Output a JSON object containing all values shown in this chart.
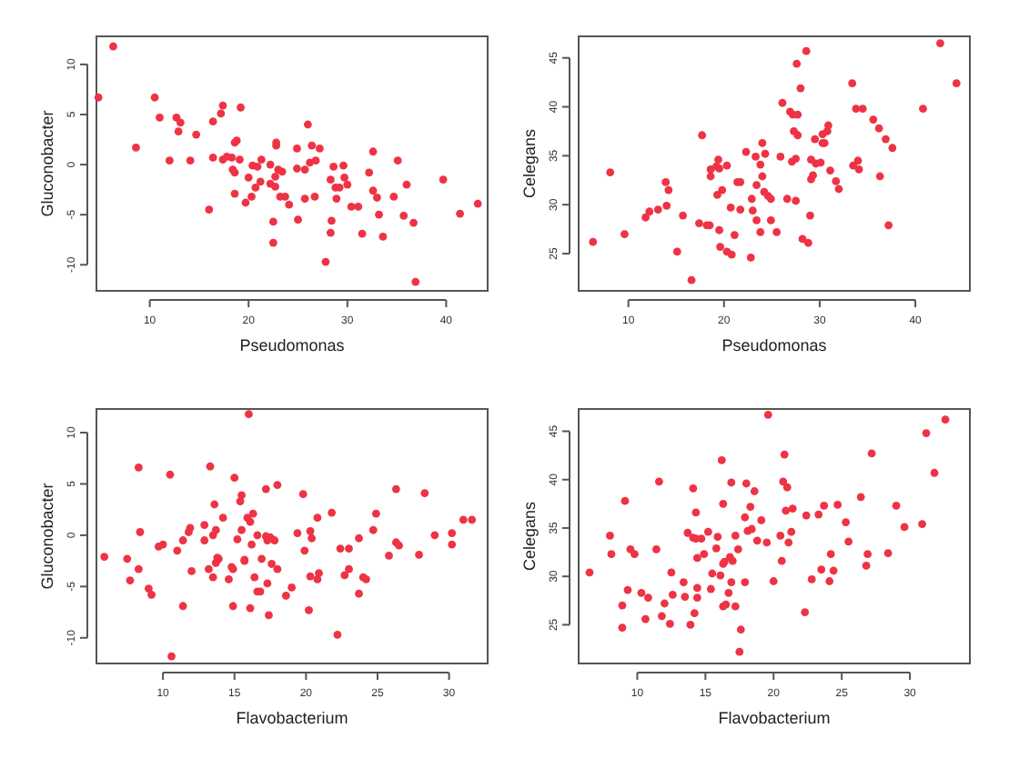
{
  "chart_data": [
    {
      "type": "scatter",
      "xlabel": "Pseudomonas",
      "ylabel": "Gluconobacter",
      "xlim": [
        4.6,
        44.2
      ],
      "ylim": [
        -12.6,
        12.8
      ],
      "xticks": [
        10,
        20,
        30,
        40
      ],
      "yticks": [
        -10,
        -5,
        0,
        5,
        10
      ],
      "marker": "circle",
      "series": [
        {
          "color": "#ee3344",
          "x": [
            6.3,
            4.8,
            8.6,
            10.5,
            11,
            12,
            12.7,
            13.1,
            12.9,
            14.1,
            14.7,
            16,
            16.4,
            16.4,
            17.2,
            17.4,
            17.4,
            17.8,
            18.3,
            18.6,
            18.8,
            19.2,
            18.4,
            18.6,
            18.6,
            19.1,
            19.7,
            20,
            20.4,
            20.7,
            20.3,
            20.9,
            21.2,
            21.3,
            22.2,
            22.2,
            22.5,
            22.5,
            22.7,
            22.8,
            22.8,
            22.7,
            23.2,
            23,
            23.4,
            23.7,
            24.1,
            24.9,
            24.9,
            25,
            25.7,
            26,
            25.7,
            26.2,
            26.4,
            26.8,
            26.7,
            27.2,
            27.8,
            28.3,
            28.4,
            28.3,
            28.6,
            28.8,
            28.9,
            29.2,
            29.6,
            29.7,
            30,
            30.4,
            31.1,
            31.5,
            32.2,
            32.6,
            32.6,
            33,
            33.2,
            33.6,
            34.7,
            35.1,
            35.7,
            36,
            36.7,
            36.9,
            39.7,
            41.4,
            43.2
          ],
          "values": [
            11.8,
            6.7,
            1.7,
            6.7,
            4.7,
            0.4,
            4.7,
            4.2,
            3.3,
            0.4,
            3,
            -4.5,
            4.3,
            0.7,
            5.1,
            5.9,
            0.5,
            0.8,
            0.7,
            2.2,
            2.4,
            5.7,
            -0.5,
            -0.8,
            -2.9,
            0.5,
            -3.8,
            -1.3,
            -0.1,
            -2.3,
            -3.2,
            -0.2,
            -1.7,
            0.5,
            0,
            -1.9,
            -5.7,
            -7.8,
            -2.2,
            1.9,
            2.2,
            -1.2,
            -3.2,
            -0.5,
            -0.7,
            -3.2,
            -4,
            1.6,
            -0.4,
            -5.5,
            -3.4,
            4,
            -0.5,
            0.2,
            1.9,
            0.4,
            -3.2,
            1.6,
            -9.7,
            -1.5,
            -5.6,
            -6.8,
            -0.2,
            -2.3,
            -3.4,
            -2.3,
            -0.1,
            -1.3,
            -2,
            -4.2,
            -4.2,
            -6.9,
            -0.8,
            1.3,
            -2.6,
            -3.3,
            -5,
            -7.2,
            -3.2,
            0.4,
            -5.1,
            -2,
            -5.8,
            -11.7,
            -1.5,
            -4.9,
            -3.9
          ]
        }
      ]
    },
    {
      "type": "scatter",
      "xlabel": "Pseudomonas",
      "ylabel": "Celegans",
      "xlim": [
        4.8,
        45.7
      ],
      "ylim": [
        21.2,
        47.2
      ],
      "xticks": [
        10,
        20,
        30,
        40
      ],
      "yticks": [
        25,
        30,
        35,
        40,
        45
      ],
      "marker": "circle",
      "series": [
        {
          "color": "#ee3344",
          "x": [
            6.3,
            8.1,
            9.6,
            11.8,
            12.2,
            13.1,
            13.9,
            14.2,
            14,
            15.1,
            15.7,
            16.6,
            17.4,
            17.7,
            18.2,
            18.5,
            18.6,
            18.6,
            19.2,
            19.4,
            19.5,
            19.3,
            19.5,
            19.6,
            19.8,
            20.3,
            20.3,
            20.7,
            20.8,
            21.1,
            21.4,
            21.7,
            21.7,
            22.3,
            22.8,
            22.9,
            23,
            23.3,
            23.4,
            23.4,
            23.8,
            23.8,
            24,
            24,
            24.3,
            24.2,
            24.6,
            24.9,
            24.9,
            25.5,
            25.9,
            26.1,
            26.6,
            26.9,
            27.1,
            27.2,
            27.3,
            27.5,
            27.5,
            27.6,
            27.7,
            27.7,
            28,
            28.2,
            28.6,
            28.8,
            29,
            29.1,
            29.1,
            29.3,
            29.5,
            29.6,
            30.1,
            30.3,
            30.3,
            30.5,
            30.8,
            30.9,
            31.1,
            31.7,
            32,
            33.4,
            33.5,
            33.8,
            34,
            34.1,
            34.5,
            35.6,
            36.2,
            36.3,
            36.9,
            37.2,
            37.6,
            40.8,
            42.6,
            44.3
          ],
          "values": [
            26.2,
            33.3,
            27,
            28.7,
            29.3,
            29.5,
            32.3,
            31.5,
            29.9,
            25.2,
            28.9,
            22.3,
            28.1,
            37.1,
            27.9,
            27.9,
            33.6,
            32.9,
            33.9,
            34.6,
            33.7,
            31,
            27.4,
            25.7,
            31.5,
            34,
            25.2,
            29.7,
            24.9,
            26.9,
            32.3,
            32.3,
            29.5,
            35.4,
            24.6,
            30.6,
            29.4,
            34.9,
            32,
            28.4,
            27.2,
            34.1,
            36.3,
            32.9,
            35.2,
            31.3,
            30.9,
            30.6,
            28.4,
            27.2,
            34.9,
            40.4,
            30.6,
            39.5,
            34.4,
            39.2,
            37.5,
            30.4,
            34.7,
            44.4,
            37.1,
            39.2,
            41.9,
            26.5,
            45.7,
            26.1,
            28.9,
            34.6,
            32.6,
            33,
            36.7,
            34.2,
            34.3,
            37.2,
            36.3,
            36.3,
            37.5,
            38.1,
            33.5,
            32.4,
            31.6,
            42.4,
            34,
            39.8,
            34.5,
            33.6,
            39.8,
            38.7,
            37.8,
            32.9,
            36.7,
            27.9,
            35.8,
            39.8,
            46.5,
            42.4
          ]
        }
      ]
    },
    {
      "type": "scatter",
      "xlabel": "Flavobacterium",
      "ylabel": "Gluconobacter",
      "xlim": [
        5.35,
        32.7
      ],
      "ylim": [
        -12.5,
        12.3
      ],
      "xticks": [
        10,
        15,
        20,
        25,
        30
      ],
      "yticks": [
        -10,
        -5,
        0,
        5,
        10
      ],
      "marker": "circle",
      "series": [
        {
          "color": "#ee3344",
          "x": [
            5.9,
            7.5,
            7.7,
            8.3,
            8.3,
            8.4,
            9,
            9.2,
            9.7,
            10,
            10.5,
            10.6,
            11,
            11.4,
            11.4,
            11.8,
            11.9,
            12,
            12.9,
            12.9,
            13.2,
            13.3,
            13.5,
            13.6,
            13.7,
            13.7,
            13.8,
            13.9,
            13.5,
            14.2,
            14.6,
            14.8,
            14.9,
            14.9,
            15,
            15.2,
            15.4,
            15.5,
            15.5,
            15.7,
            15.7,
            15.9,
            16,
            16.1,
            16.1,
            16.2,
            16.3,
            16.4,
            16.6,
            16.6,
            16.8,
            16.9,
            17.2,
            17.2,
            17.3,
            17.3,
            17.4,
            17.5,
            17.6,
            17.8,
            18,
            18,
            18.6,
            19,
            19.4,
            19.8,
            19.9,
            20.2,
            20.3,
            20.3,
            20.4,
            20.8,
            20.8,
            20.9,
            21.8,
            22.2,
            22.4,
            22.7,
            23,
            23,
            23.7,
            23.7,
            24,
            24.2,
            24.7,
            24.9,
            25.8,
            26.3,
            26.3,
            26.5,
            27.9,
            28.3,
            29,
            30.2,
            30.2,
            31,
            31.6
          ],
          "values": [
            -2.1,
            -2.3,
            -4.4,
            -3.3,
            6.6,
            0.3,
            -5.2,
            -5.8,
            -1.1,
            -0.9,
            5.9,
            -11.8,
            -1.5,
            -0.5,
            -6.9,
            0.3,
            0.7,
            -3.5,
            1,
            -0.5,
            -3.3,
            6.7,
            0,
            3,
            0.5,
            -2.7,
            -2.2,
            -2.3,
            -4.1,
            1.7,
            -4.3,
            -3.1,
            -3.3,
            -6.9,
            5.6,
            -0.4,
            3.3,
            3.9,
            0.5,
            -2.5,
            -2.4,
            1.7,
            11.8,
            1.3,
            -7.1,
            -0.9,
            2.1,
            -4.1,
            0,
            -5.5,
            -5.5,
            -2.3,
            4.5,
            -0.1,
            -4.7,
            -0.5,
            -7.8,
            -0.2,
            -2.8,
            -0.5,
            4.9,
            -3.3,
            -5.9,
            -5.1,
            0.2,
            4,
            -1.5,
            -7.3,
            -4,
            0.4,
            -0.3,
            1.7,
            -4.3,
            -3.7,
            2.2,
            -9.7,
            -1.3,
            -3.9,
            -1.3,
            -3.3,
            -0.3,
            -5.7,
            -4.1,
            -4.3,
            0.5,
            2.1,
            -2,
            4.5,
            -0.7,
            -1,
            -1.9,
            4.1,
            0,
            0.2,
            -0.9,
            1.5,
            1.5
          ]
        }
      ]
    },
    {
      "type": "scatter",
      "xlabel": "Flavobacterium",
      "ylabel": "Celegans",
      "xlim": [
        5.7,
        34.4
      ],
      "ylim": [
        21,
        47.3
      ],
      "xticks": [
        10,
        15,
        20,
        25,
        30
      ],
      "yticks": [
        25,
        30,
        35,
        40,
        45
      ],
      "marker": "circle",
      "series": [
        {
          "color": "#ee3344",
          "x": [
            6.5,
            8,
            8.1,
            8.9,
            8.9,
            9.1,
            9.3,
            9.5,
            9.8,
            10.3,
            10.6,
            10.8,
            11.4,
            11.6,
            11.8,
            12,
            12.5,
            12.4,
            12.6,
            13.4,
            13.5,
            13.7,
            13.9,
            14.1,
            14.1,
            14.2,
            14.3,
            14.3,
            14.4,
            14.4,
            14.4,
            14.7,
            14.9,
            15.2,
            15.4,
            15.5,
            15.8,
            15.9,
            16.1,
            16.2,
            16.3,
            16.3,
            16.3,
            16.4,
            16.5,
            16.7,
            16.8,
            16.9,
            16.9,
            17,
            17.2,
            17.2,
            17.4,
            17.6,
            17.5,
            17.9,
            17.9,
            18,
            18.1,
            18.3,
            18.4,
            18.6,
            18.8,
            19.1,
            19.5,
            19.6,
            20,
            20.5,
            20.6,
            20.7,
            20.8,
            20.9,
            21,
            21.1,
            21.3,
            21.4,
            22.3,
            22.4,
            22.8,
            23.3,
            23.5,
            23.7,
            24.1,
            24.2,
            24.4,
            24.7,
            25.3,
            25.5,
            26.4,
            26.8,
            26.9,
            27.2,
            28.4,
            29,
            29.6,
            30.9,
            31.2,
            31.8,
            32.6
          ],
          "values": [
            30.4,
            34.2,
            32.3,
            27,
            24.7,
            37.8,
            28.6,
            32.8,
            32.3,
            28.3,
            25.6,
            27.8,
            32.8,
            39.8,
            25.9,
            27.2,
            30.4,
            25.1,
            28.1,
            29.4,
            27.9,
            34.5,
            25,
            34,
            39.1,
            26.2,
            36.6,
            33.9,
            28.8,
            27.8,
            31.9,
            33.9,
            32.3,
            34.6,
            28.7,
            30.3,
            32.9,
            34.1,
            30.1,
            42,
            26.9,
            37.5,
            31.3,
            31.5,
            27.1,
            28.3,
            32,
            39.7,
            29.4,
            31.6,
            34.2,
            26.9,
            32.8,
            24.5,
            22.2,
            36.1,
            29.4,
            39.6,
            34.7,
            37.2,
            34.9,
            38.8,
            33.7,
            35.8,
            33.5,
            46.7,
            29.5,
            34.2,
            31.6,
            39.8,
            42.6,
            36.8,
            39.2,
            33.5,
            34.6,
            37,
            26.3,
            36.3,
            29.7,
            36.4,
            30.7,
            37.3,
            29.5,
            32.3,
            30.6,
            37.4,
            35.6,
            33.6,
            38.2,
            31.1,
            32.3,
            42.7,
            32.4,
            37.3,
            35.1,
            35.4,
            44.8,
            40.7,
            46.2
          ]
        }
      ]
    }
  ]
}
